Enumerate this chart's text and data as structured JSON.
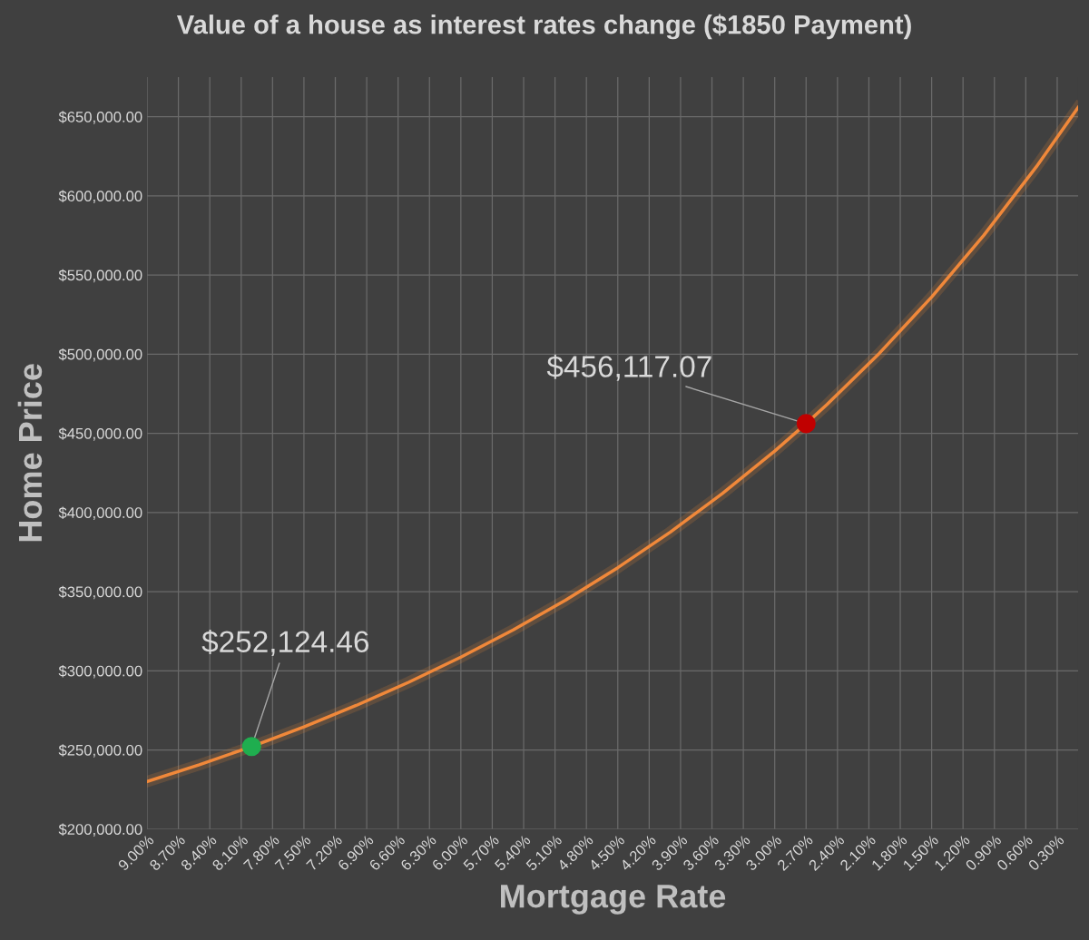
{
  "chart_data": {
    "type": "line",
    "title": "Value of a house as interest rates change ($1850 Payment)",
    "xlabel": "Mortgage Rate",
    "ylabel": "Home Price",
    "xlim": [
      9.0,
      0.1
    ],
    "xticks": [
      {
        "value": 9.0,
        "label": "9.00%"
      },
      {
        "value": 8.7,
        "label": "8.70%"
      },
      {
        "value": 8.4,
        "label": "8.40%"
      },
      {
        "value": 8.1,
        "label": "8.10%"
      },
      {
        "value": 7.8,
        "label": "7.80%"
      },
      {
        "value": 7.5,
        "label": "7.50%"
      },
      {
        "value": 7.2,
        "label": "7.20%"
      },
      {
        "value": 6.9,
        "label": "6.90%"
      },
      {
        "value": 6.6,
        "label": "6.60%"
      },
      {
        "value": 6.3,
        "label": "6.30%"
      },
      {
        "value": 6.0,
        "label": "6.00%"
      },
      {
        "value": 5.7,
        "label": "5.70%"
      },
      {
        "value": 5.4,
        "label": "5.40%"
      },
      {
        "value": 5.1,
        "label": "5.10%"
      },
      {
        "value": 4.8,
        "label": "4.80%"
      },
      {
        "value": 4.5,
        "label": "4.50%"
      },
      {
        "value": 4.2,
        "label": "4.20%"
      },
      {
        "value": 3.9,
        "label": "3.90%"
      },
      {
        "value": 3.6,
        "label": "3.60%"
      },
      {
        "value": 3.3,
        "label": "3.30%"
      },
      {
        "value": 3.0,
        "label": "3.00%"
      },
      {
        "value": 2.7,
        "label": "2.70%"
      },
      {
        "value": 2.4,
        "label": "2.40%"
      },
      {
        "value": 2.1,
        "label": "2.10%"
      },
      {
        "value": 1.8,
        "label": "1.80%"
      },
      {
        "value": 1.5,
        "label": "1.50%"
      },
      {
        "value": 1.2,
        "label": "1.20%"
      },
      {
        "value": 0.9,
        "label": "0.90%"
      },
      {
        "value": 0.6,
        "label": "0.60%"
      },
      {
        "value": 0.3,
        "label": "0.30%"
      }
    ],
    "ylim": [
      200000,
      675000
    ],
    "yticks": [
      {
        "value": 200000,
        "label": "$200,000.00"
      },
      {
        "value": 250000,
        "label": "$250,000.00"
      },
      {
        "value": 300000,
        "label": "$300,000.00"
      },
      {
        "value": 350000,
        "label": "$350,000.00"
      },
      {
        "value": 400000,
        "label": "$400,000.00"
      },
      {
        "value": 450000,
        "label": "$450,000.00"
      },
      {
        "value": 500000,
        "label": "$500,000.00"
      },
      {
        "value": 550000,
        "label": "$550,000.00"
      },
      {
        "value": 600000,
        "label": "$600,000.00"
      },
      {
        "value": 650000,
        "label": "$650,000.00"
      }
    ],
    "grid": true,
    "legend": false,
    "series": [
      {
        "color": "#f0883a",
        "x": [
          9.0,
          8.5,
          8.0,
          7.5,
          7.0,
          6.5,
          6.0,
          5.5,
          5.0,
          4.5,
          4.0,
          3.5,
          3.0,
          2.7,
          2.5,
          2.0,
          1.5,
          1.0,
          0.5,
          0.1
        ],
        "values": [
          230000,
          240600,
          252100,
          264600,
          278100,
          292700,
          308600,
          325800,
          344600,
          365100,
          387500,
          412000,
          438800,
          456100,
          468200,
          500500,
          536100,
          575200,
          618300,
          655800
        ]
      },
      {
        "type": "scatter",
        "color": "#1fae4f",
        "x": [
          8.0
        ],
        "values": [
          252124.46
        ]
      },
      {
        "type": "scatter",
        "color": "#c00000",
        "x": [
          2.7
        ],
        "values": [
          456117.07
        ]
      }
    ],
    "annotations": [
      {
        "text": "$252,124.46",
        "x": 8.0,
        "y": 252124.46
      },
      {
        "text": "$456,117.07",
        "x": 2.7,
        "y": 456117.07
      }
    ]
  }
}
